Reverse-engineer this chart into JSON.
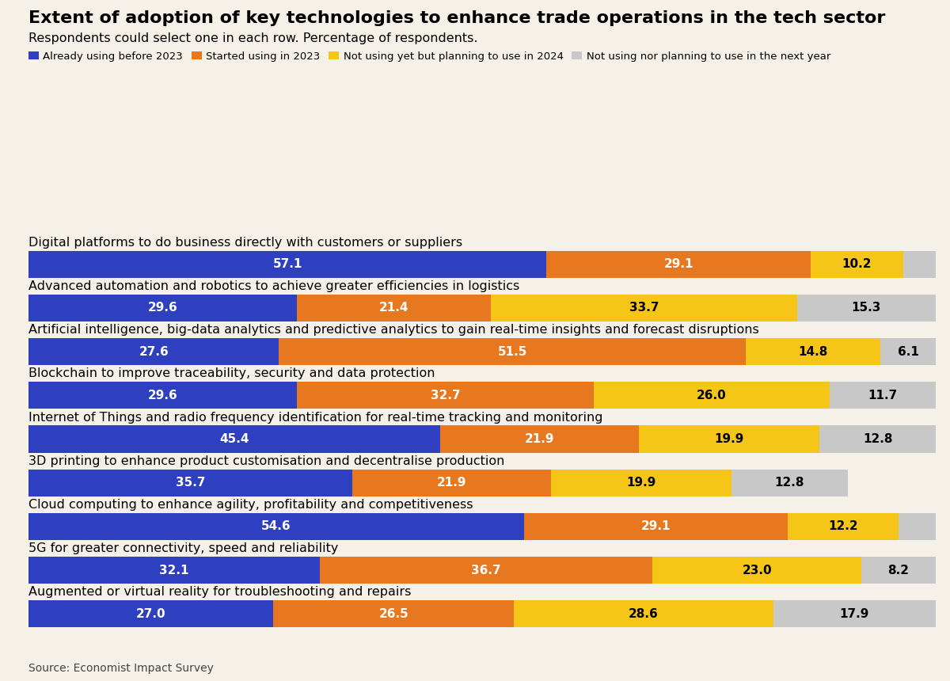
{
  "title": "Extent of adoption of key technologies to enhance trade operations in the tech sector",
  "subtitle": "Respondents could select one in each row. Percentage of respondents.",
  "source": "Source: Economist Impact Survey",
  "legend_labels": [
    "Already using before 2023",
    "Started using in 2023",
    "Not using yet but planning to use in 2024",
    "Not using nor planning to use in the next year"
  ],
  "colors": [
    "#2e3fc0",
    "#e87820",
    "#f5c518",
    "#c8c8c8"
  ],
  "categories": [
    "Digital platforms to do business directly with customers or suppliers",
    "Advanced automation and robotics to achieve greater efficiencies in logistics",
    "Artificial intelligence, big-data analytics and predictive analytics to gain real-time insights and forecast disruptions",
    "Blockchain to improve traceability, security and data protection",
    "Internet of Things and radio frequency identification for real-time tracking and monitoring",
    "3D printing to enhance product customisation and decentralise production",
    "Cloud computing to enhance agility, profitability and competitiveness",
    "5G for greater connectivity, speed and reliability",
    "Augmented or virtual reality for troubleshooting and repairs"
  ],
  "data": [
    [
      57.1,
      29.1,
      10.2,
      3.6
    ],
    [
      29.6,
      21.4,
      33.7,
      15.3
    ],
    [
      27.6,
      51.5,
      14.8,
      6.1
    ],
    [
      29.6,
      32.7,
      26.0,
      11.7
    ],
    [
      45.4,
      21.9,
      19.9,
      12.8
    ],
    [
      35.7,
      21.9,
      19.9,
      12.8
    ],
    [
      54.6,
      29.1,
      12.2,
      4.1
    ],
    [
      32.1,
      36.7,
      23.0,
      8.2
    ],
    [
      27.0,
      26.5,
      28.6,
      17.9
    ]
  ],
  "background_color": "#f5f0e8",
  "title_fontsize": 16,
  "subtitle_fontsize": 11.5,
  "bar_label_fontsize": 11,
  "category_fontsize": 11.5,
  "bar_height": 0.62,
  "bar_label_colors": [
    "white",
    "white",
    "black",
    "black"
  ]
}
